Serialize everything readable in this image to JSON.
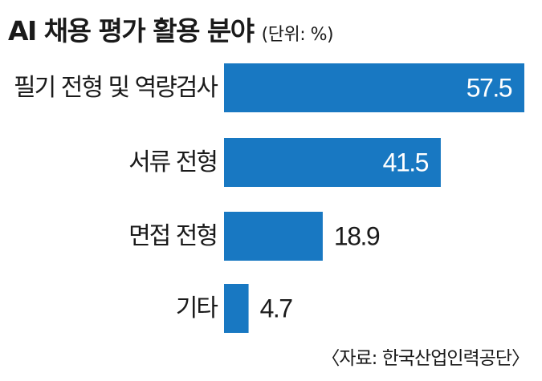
{
  "header": {
    "title": "AI 채용 평가 활용 분야",
    "unit": "(단위: %)"
  },
  "source": "〈자료: 한국산업인력공단〉",
  "colors": {
    "bar": "#1878c2",
    "value_inside": "#ffffff",
    "value_outside": "#1a1a1a"
  },
  "chart_data": {
    "type": "bar",
    "orientation": "horizontal",
    "title": "AI 채용 평가 활용 분야",
    "unit": "%",
    "categories": [
      "필기 전형 및 역량검사",
      "서류 전형",
      "면접 전형",
      "기타"
    ],
    "values": [
      57.5,
      41.5,
      18.9,
      4.7
    ],
    "value_labels": [
      "57.5",
      "41.5",
      "18.9",
      "4.7"
    ],
    "xlim": [
      0,
      57.5
    ],
    "grid": false,
    "legend": "none"
  }
}
